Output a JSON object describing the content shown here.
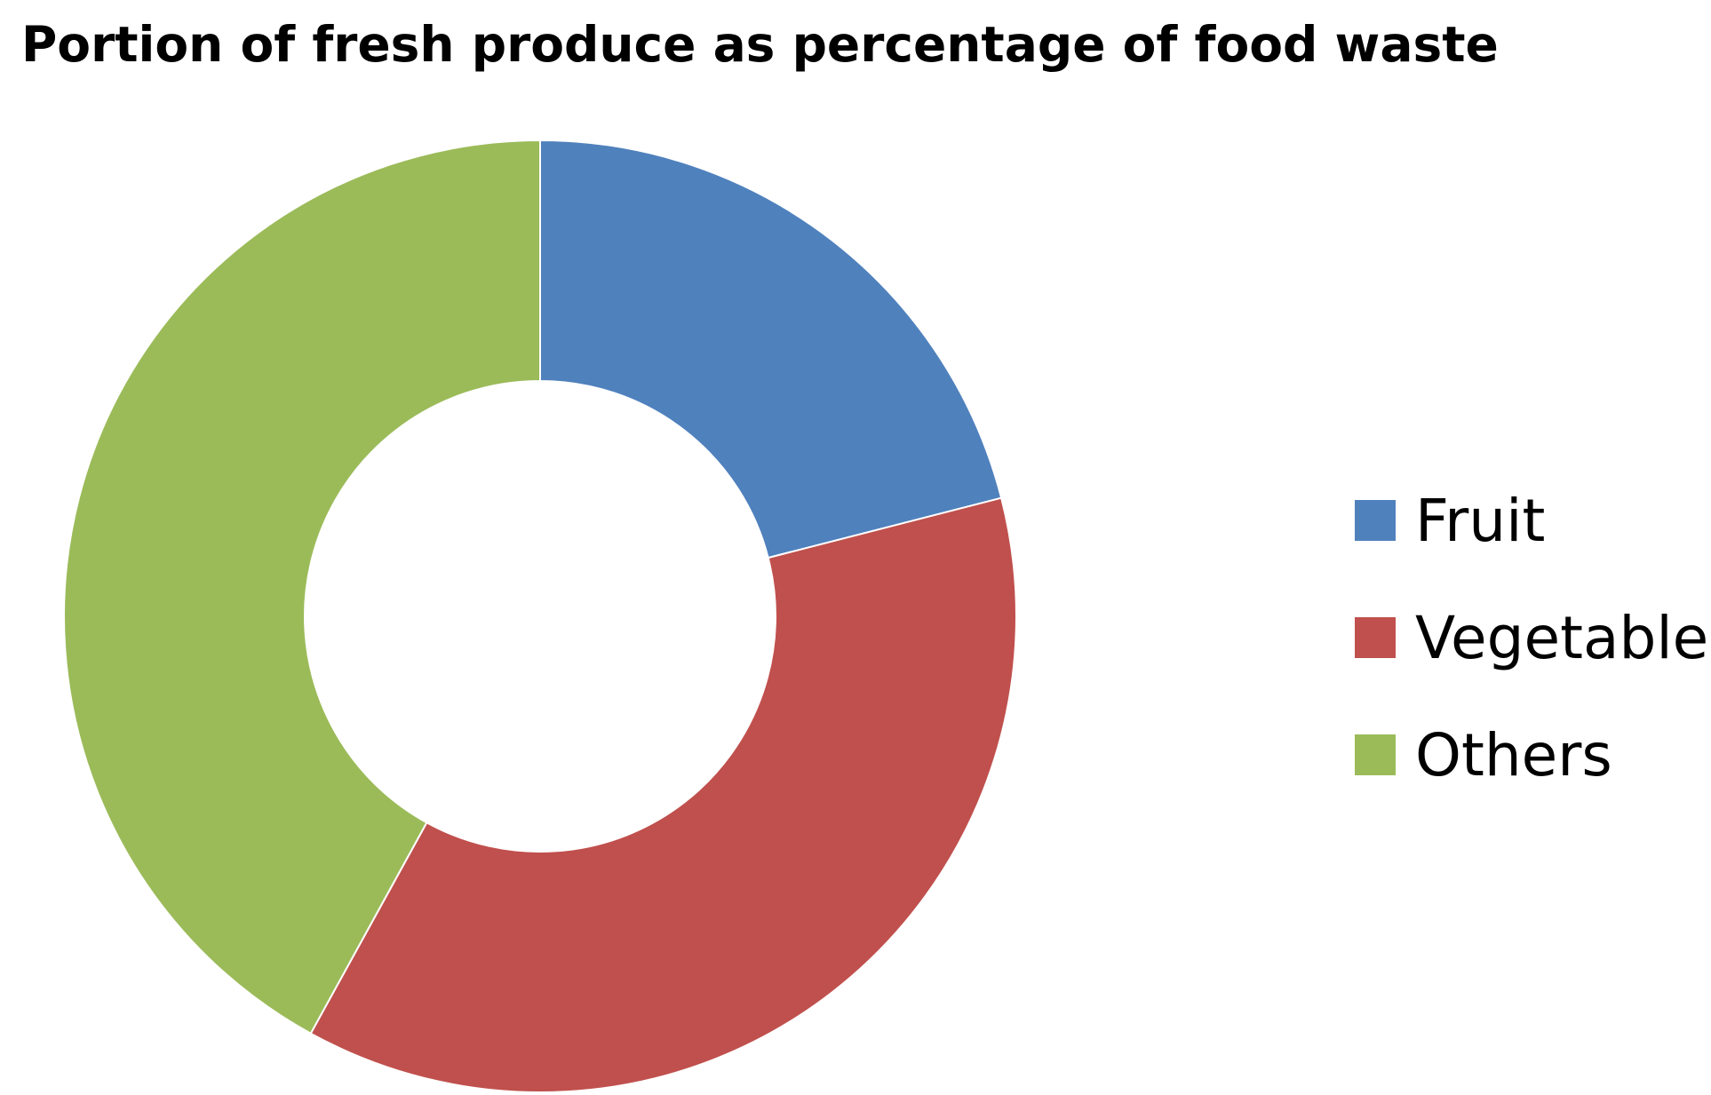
{
  "chart_data": {
    "type": "pie",
    "title": "Portion of fresh produce as percentage of food waste",
    "donut": true,
    "categories": [
      "Fruit",
      "Vegetable",
      "Others"
    ],
    "values": [
      21,
      37,
      42
    ],
    "colors": [
      "#4F81BD",
      "#C0504D",
      "#9BBB59"
    ],
    "start_angle": "top",
    "direction": "clockwise",
    "legend": "right"
  }
}
